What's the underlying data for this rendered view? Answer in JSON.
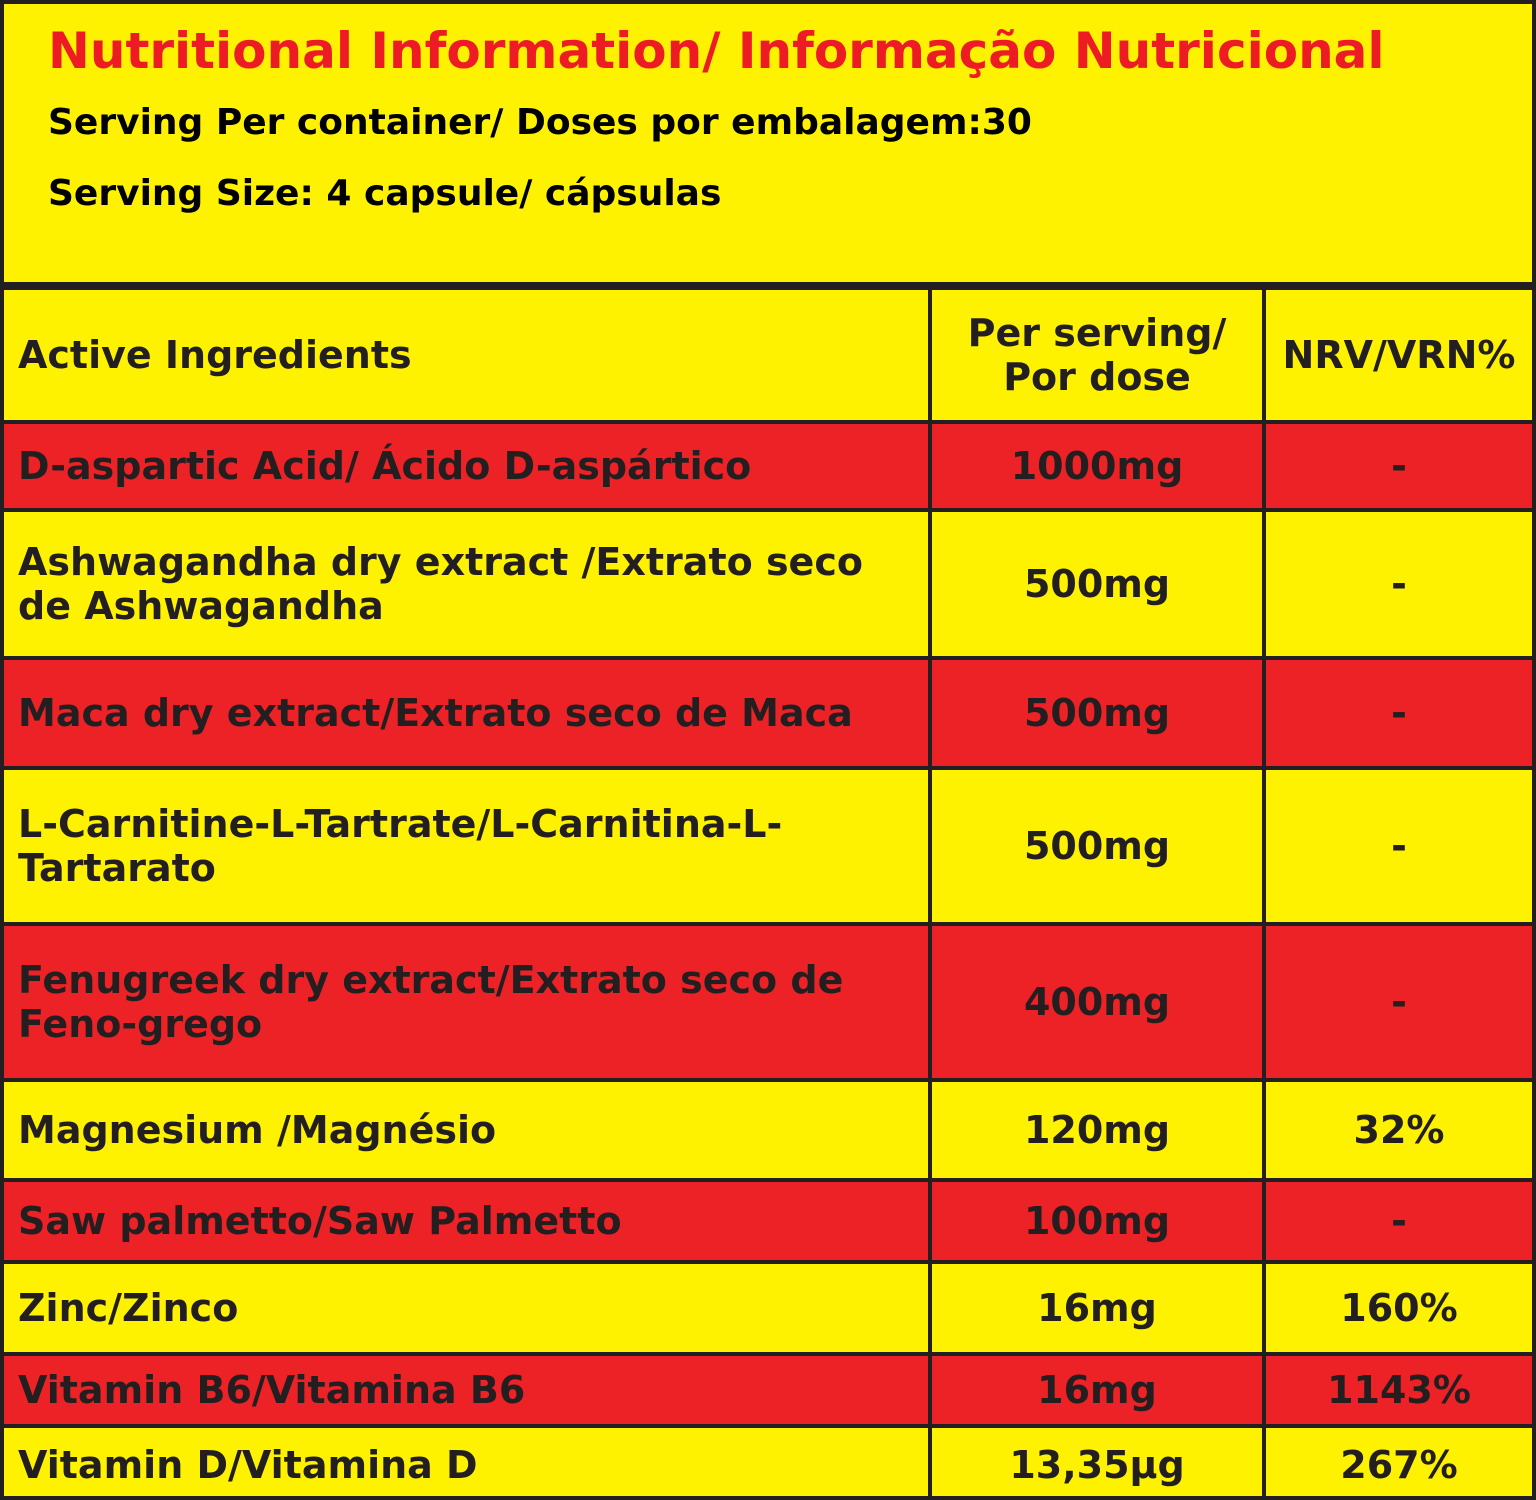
{
  "header": {
    "title": "Nutritional Information/ Informação Nutricional",
    "servings": "Serving Per container/ Doses por embalagem:30",
    "serving_size": "Serving Size: 4 capsule/ cápsulas"
  },
  "table": {
    "columns": [
      "Active Ingredients",
      "Per serving/ Por dose",
      "NRV/VRN%"
    ],
    "rows": [
      [
        "D-aspartic Acid/ Ácido D-aspártico",
        "1000mg",
        "-"
      ],
      [
        "Ashwagandha dry extract /Extrato seco de Ashwagandha",
        "500mg",
        "-"
      ],
      [
        "Maca dry extract/Extrato seco de Maca",
        "500mg",
        "-"
      ],
      [
        "L-Carnitine-L-Tartrate/L-Carnitina-L-Tartarato",
        "500mg",
        "-"
      ],
      [
        "Fenugreek dry extract/Extrato seco de Feno-grego",
        "400mg",
        "-"
      ],
      [
        "Magnesium /Magnésio",
        "120mg",
        "32%"
      ],
      [
        "Saw palmetto/Saw Palmetto",
        "100mg",
        "-"
      ],
      [
        "Zinc/Zinco",
        "16mg",
        "160%"
      ],
      [
        "Vitamin B6/Vitamina B6",
        "16mg",
        "1143%"
      ],
      [
        "Vitamin D/Vitamina D",
        "13,35µg",
        "267%"
      ]
    ]
  }
}
